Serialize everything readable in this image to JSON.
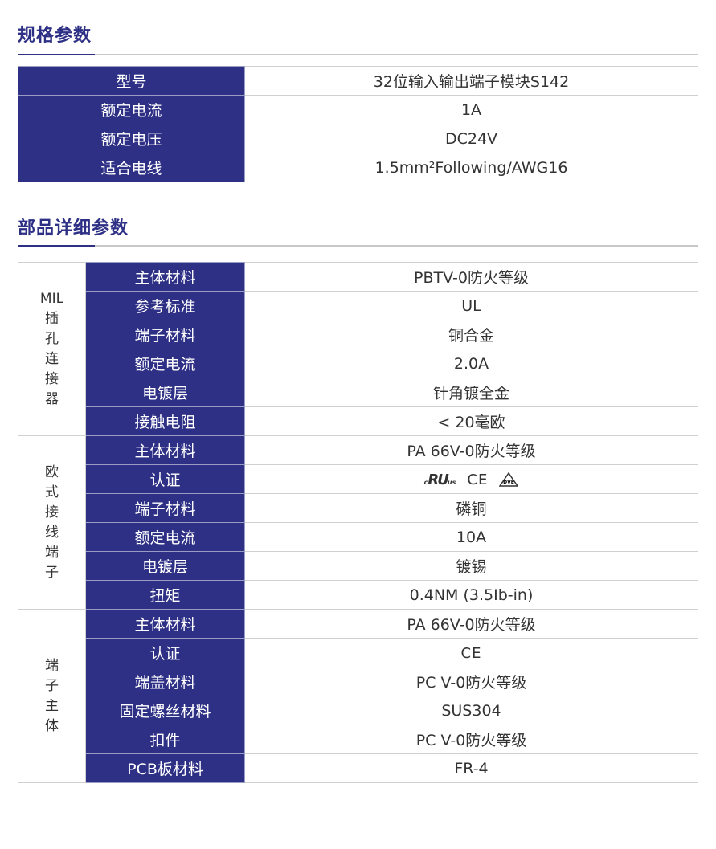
{
  "spec": {
    "title": "规格参数",
    "rows": [
      {
        "label": "型号",
        "value": "32位输入输出端子模块S142"
      },
      {
        "label": "额定电流",
        "value": "1A"
      },
      {
        "label": "额定电压",
        "value": "DC24V"
      },
      {
        "label": "适合电线",
        "value": "1.5mm²Following/AWG16"
      }
    ]
  },
  "parts": {
    "title": "部品详细参数",
    "groups": [
      {
        "name": "MIL\n插\n孔\n连\n接\n器",
        "rows": [
          {
            "label": "主体材料",
            "value": "PBTV-0防火等级"
          },
          {
            "label": "参考标准",
            "value": "UL"
          },
          {
            "label": "端子材料",
            "value": "铜合金"
          },
          {
            "label": "额定电流",
            "value": "2.0A"
          },
          {
            "label": "电镀层",
            "value": "针角镀全金"
          },
          {
            "label": "接触电阻",
            "value": "< 20毫欧"
          }
        ]
      },
      {
        "name": "欧\n式\n接\n线\n端\n子",
        "rows": [
          {
            "label": "主体材料",
            "value": "PA 66V-0防火等级"
          },
          {
            "label": "认证",
            "value": "",
            "icons": [
              "cul-us-icon",
              "ce-icon",
              "vde-icon"
            ]
          },
          {
            "label": "端子材料",
            "value": "磷铜"
          },
          {
            "label": "额定电流",
            "value": "10A"
          },
          {
            "label": "电镀层",
            "value": "镀锡"
          },
          {
            "label": "扭矩",
            "value": "0.4NM (3.5Ib-in)"
          }
        ]
      },
      {
        "name": "端\n子\n主\n体",
        "rows": [
          {
            "label": "主体材料",
            "value": "PA 66V-0防火等级"
          },
          {
            "label": "认证",
            "value": "",
            "icons": [
              "ce-icon"
            ]
          },
          {
            "label": "端盖材料",
            "value": "PC V-0防火等级"
          },
          {
            "label": "固定螺丝材料",
            "value": "SUS304"
          },
          {
            "label": "扣件",
            "value": "PC V-0防火等级"
          },
          {
            "label": "PCB板材料",
            "value": "FR-4"
          }
        ]
      }
    ]
  },
  "colors": {
    "accent": "#2e3085"
  }
}
